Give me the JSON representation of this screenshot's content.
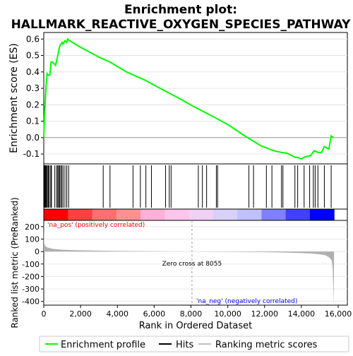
{
  "chart_data": {
    "type": "line",
    "title_line1": "Enrichment plot:",
    "title_line2": "HALLMARK_REACTIVE_OXYGEN_SPECIES_PATHWAY",
    "es_panel": {
      "ylabel": "Enrichment score (ES)",
      "ylim": [
        -0.16,
        0.64
      ],
      "yticks": [
        -0.1,
        0.0,
        0.1,
        0.2,
        0.3,
        0.4,
        0.5,
        0.6
      ],
      "ytick_labels": [
        "-0.1",
        "0.0",
        "0.1",
        "0.2",
        "0.3",
        "0.4",
        "0.5",
        "0.6"
      ],
      "line_color": "#00ff00",
      "x": [
        0,
        40,
        80,
        120,
        180,
        250,
        330,
        400,
        480,
        560,
        640,
        720,
        780,
        830,
        880,
        940,
        1000,
        1050,
        1150,
        1250,
        1300,
        1400,
        2000,
        2500,
        3000,
        3200,
        3600,
        4500,
        5500,
        6500,
        7500,
        8055,
        9000,
        10000,
        11000,
        11800,
        12500,
        12900,
        13200,
        13500,
        13650,
        13800,
        14000,
        14150,
        14300,
        14500,
        14700,
        14900,
        15100,
        15250,
        15500,
        15620,
        15750
      ],
      "es": [
        0.0,
        0.13,
        0.22,
        0.3,
        0.39,
        0.38,
        0.38,
        0.46,
        0.46,
        0.45,
        0.44,
        0.48,
        0.51,
        0.54,
        0.56,
        0.57,
        0.58,
        0.57,
        0.59,
        0.58,
        0.6,
        0.59,
        0.55,
        0.52,
        0.49,
        0.48,
        0.46,
        0.4,
        0.35,
        0.29,
        0.23,
        0.195,
        0.14,
        0.08,
        0.005,
        -0.05,
        -0.08,
        -0.09,
        -0.095,
        -0.11,
        -0.12,
        -0.12,
        -0.13,
        -0.12,
        -0.115,
        -0.11,
        -0.08,
        -0.09,
        -0.09,
        -0.055,
        -0.07,
        0.01,
        0.0
      ]
    },
    "hits": {
      "color": "#000000",
      "positions": [
        30,
        60,
        90,
        120,
        150,
        200,
        250,
        300,
        380,
        420,
        600,
        700,
        760,
        810,
        860,
        920,
        980,
        1050,
        1150,
        1250,
        1350,
        3230,
        3600,
        4850,
        5250,
        5550,
        5850,
        6620,
        6820,
        6920,
        8400,
        8620,
        8850,
        9380,
        9450,
        11150,
        11400,
        12100,
        12400,
        12920,
        13000,
        13650,
        13800,
        14150,
        14450,
        14650,
        14750,
        14900,
        15250,
        15620
      ]
    },
    "ranked_panel": {
      "xlabel": "Rank in Ordered Dataset",
      "ylabel": "Ranked list metric (PreRanked)",
      "xlim": [
        0,
        16500
      ],
      "ylim": [
        -430,
        250
      ],
      "xticks": [
        0,
        2000,
        4000,
        6000,
        8000,
        10000,
        12000,
        14000,
        16000
      ],
      "xtick_labels": [
        "0",
        "2,000",
        "4,000",
        "6,000",
        "8,000",
        "10,000",
        "12,000",
        "14,000",
        "16,000"
      ],
      "yticks": [
        -400,
        -300,
        -200,
        -100,
        0,
        100,
        200
      ],
      "ytick_labels": [
        "-400",
        "-300",
        "-200",
        "-100",
        "0",
        "100",
        "200"
      ],
      "fill_color": "#b0b0b0",
      "x": [
        0,
        20,
        60,
        120,
        250,
        400,
        600,
        1000,
        1500,
        2000,
        3000,
        4000,
        6000,
        8055,
        10000,
        12000,
        13000,
        14000,
        14500,
        15000,
        15300,
        15500,
        15650,
        15700,
        15750,
        15780
      ],
      "y": [
        250,
        70,
        50,
        40,
        30,
        25,
        20,
        15,
        12,
        10,
        7,
        5,
        2,
        0,
        -2,
        -5,
        -8,
        -12,
        -16,
        -22,
        -30,
        -45,
        -70,
        -130,
        -420,
        0
      ],
      "zero_cross_label": "Zero cross at 8055",
      "zero_cross_rank": 8055,
      "pos_label": "'na_pos' (positively correlated)",
      "neg_label": "'na_neg' (negatively correlated)",
      "pos_color": "#ff0000",
      "neg_color": "#0000ff"
    },
    "legend": {
      "placement": "bottom",
      "entries": [
        {
          "label": "Enrichment profile",
          "color": "#00ff00"
        },
        {
          "label": "Hits",
          "color": "#000000"
        },
        {
          "label": "Ranking metric scores",
          "color": "#c0c0c0"
        }
      ]
    },
    "heat_colors": [
      "#ff0000",
      "#ff4040",
      "#ff6f6f",
      "#ff9090",
      "#ffb0d8",
      "#ffc4ec",
      "#f0d0f4",
      "#d8d0f8",
      "#c0c0ff",
      "#8080ff",
      "#4040ff",
      "#0000ff"
    ]
  }
}
